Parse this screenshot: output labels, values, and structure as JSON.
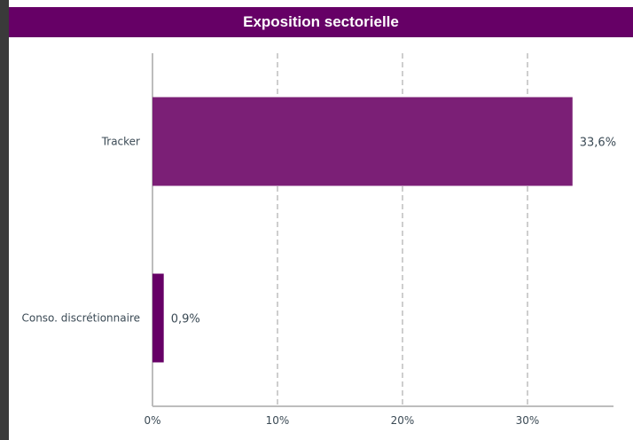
{
  "chart_data": {
    "type": "bar",
    "orientation": "horizontal",
    "title": "Exposition sectorielle",
    "categories": [
      "Tracker",
      "Conso. discrétionnaire"
    ],
    "values": [
      33.6,
      0.9
    ],
    "value_labels": [
      "33,6%",
      "0,9%"
    ],
    "xlim": [
      0,
      37
    ],
    "xticks": [
      0,
      10,
      20,
      30
    ],
    "xtick_labels": [
      "0%",
      "10%",
      "20%",
      "30%"
    ],
    "grid": "vertical-dashed",
    "legend": "none",
    "colors": {
      "bars": [
        "#7b1f76",
        "#660066"
      ],
      "title_background": "#660066",
      "gridline": "#bdbdbd",
      "text": "#3b4a55"
    }
  }
}
